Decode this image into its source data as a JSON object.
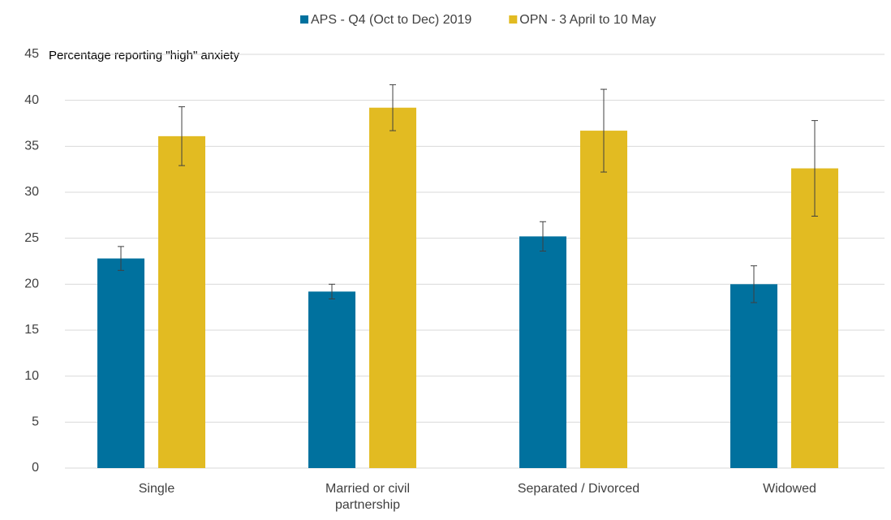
{
  "chart_data": {
    "type": "bar",
    "subtitle": "Percentage reporting \"high\" anxiety",
    "categories": [
      "Single",
      "Married or civil partnership",
      "Separated / Divorced",
      "Widowed"
    ],
    "series": [
      {
        "name": "APS - Q4 (Oct to Dec) 2019",
        "color": "#00719e",
        "values": [
          22.8,
          19.2,
          25.2,
          20.0
        ],
        "errors": [
          1.3,
          0.8,
          1.6,
          2.0
        ]
      },
      {
        "name": "OPN - 3 April to 10 May",
        "color": "#e2bb22",
        "values": [
          36.1,
          39.2,
          36.7,
          32.6
        ],
        "errors": [
          3.2,
          2.5,
          4.5,
          5.2
        ]
      }
    ],
    "ylim": [
      0,
      45
    ],
    "yticks": [
      0,
      5,
      10,
      15,
      20,
      25,
      30,
      35,
      40,
      45
    ],
    "grid": true,
    "legend": "top"
  }
}
